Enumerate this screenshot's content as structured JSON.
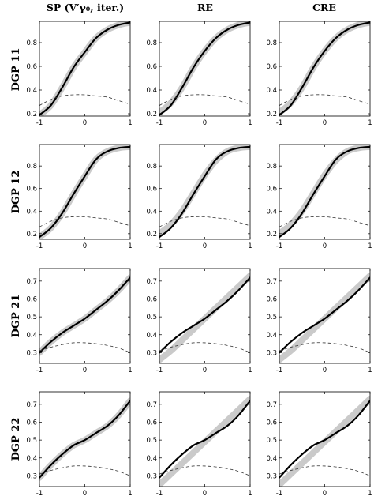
{
  "figure": {
    "column_titles": [
      "SP (V′γ₀, iter.)",
      "RE",
      "CRE"
    ],
    "row_titles": [
      "DGP 11",
      "DGP 12",
      "DGP 21",
      "DGP 22"
    ]
  },
  "chart_data": [
    {
      "type": "line",
      "column": "SP (V′γ₀, iter.)",
      "row": "DGP 11",
      "xlim": [
        -1,
        1
      ],
      "ylim": [
        0.18,
        0.98
      ],
      "xticks": [
        "-1",
        "0",
        "1"
      ],
      "yticks": [
        "0.2",
        "0.4",
        "0.6",
        "0.8"
      ],
      "x": [
        -1,
        -0.75,
        -0.5,
        -0.25,
        0,
        0.25,
        0.5,
        0.75,
        1
      ],
      "series": [
        {
          "style": "gray-band",
          "values": [
            0.19,
            0.27,
            0.42,
            0.59,
            0.72,
            0.84,
            0.91,
            0.95,
            0.97
          ]
        },
        {
          "style": "solid-black",
          "values": [
            0.19,
            0.27,
            0.42,
            0.59,
            0.72,
            0.84,
            0.91,
            0.95,
            0.97
          ]
        },
        {
          "style": "dashed",
          "values": [
            0.27,
            0.32,
            0.35,
            0.36,
            0.36,
            0.35,
            0.34,
            0.31,
            0.28
          ]
        }
      ]
    },
    {
      "type": "line",
      "column": "RE",
      "row": "DGP 11",
      "xlim": [
        -1,
        1
      ],
      "ylim": [
        0.18,
        0.98
      ],
      "xticks": [
        "-1",
        "0",
        "1"
      ],
      "yticks": [
        "0.2",
        "0.4",
        "0.6",
        "0.8"
      ],
      "x": [
        -1,
        -0.75,
        -0.5,
        -0.25,
        0,
        0.25,
        0.5,
        0.75,
        1
      ],
      "series": [
        {
          "style": "gray-band",
          "values": [
            0.21,
            0.29,
            0.42,
            0.59,
            0.73,
            0.84,
            0.91,
            0.95,
            0.97
          ]
        },
        {
          "style": "solid-black",
          "values": [
            0.19,
            0.27,
            0.42,
            0.59,
            0.73,
            0.84,
            0.91,
            0.95,
            0.97
          ]
        },
        {
          "style": "dashed",
          "values": [
            0.27,
            0.32,
            0.35,
            0.36,
            0.36,
            0.35,
            0.34,
            0.31,
            0.28
          ]
        }
      ]
    },
    {
      "type": "line",
      "column": "CRE",
      "row": "DGP 11",
      "xlim": [
        -1,
        1
      ],
      "ylim": [
        0.18,
        0.98
      ],
      "xticks": [
        "-1",
        "0",
        "1"
      ],
      "yticks": [
        "0.2",
        "0.4",
        "0.6",
        "0.8"
      ],
      "x": [
        -1,
        -0.75,
        -0.5,
        -0.25,
        0,
        0.25,
        0.5,
        0.75,
        1
      ],
      "series": [
        {
          "style": "gray-band",
          "values": [
            0.21,
            0.29,
            0.42,
            0.59,
            0.73,
            0.84,
            0.91,
            0.95,
            0.97
          ]
        },
        {
          "style": "solid-black",
          "values": [
            0.19,
            0.27,
            0.42,
            0.59,
            0.73,
            0.84,
            0.91,
            0.95,
            0.97
          ]
        },
        {
          "style": "dashed",
          "values": [
            0.27,
            0.32,
            0.35,
            0.36,
            0.36,
            0.35,
            0.34,
            0.31,
            0.28
          ]
        }
      ]
    },
    {
      "type": "line",
      "column": "SP (V′γ₀, iter.)",
      "row": "DGP 12",
      "xlim": [
        -1,
        1
      ],
      "ylim": [
        0.15,
        0.99
      ],
      "xticks": [
        "-1",
        "0",
        "1"
      ],
      "yticks": [
        "0.2",
        "0.4",
        "0.6",
        "0.8"
      ],
      "x": [
        -1,
        -0.75,
        -0.5,
        -0.25,
        0,
        0.25,
        0.5,
        0.75,
        1
      ],
      "series": [
        {
          "style": "gray-band",
          "values": [
            0.17,
            0.25,
            0.38,
            0.55,
            0.71,
            0.86,
            0.93,
            0.96,
            0.97
          ]
        },
        {
          "style": "solid-black",
          "values": [
            0.17,
            0.25,
            0.38,
            0.55,
            0.71,
            0.86,
            0.93,
            0.96,
            0.97
          ]
        },
        {
          "style": "dashed",
          "values": [
            0.26,
            0.31,
            0.34,
            0.35,
            0.35,
            0.34,
            0.33,
            0.3,
            0.27
          ]
        }
      ]
    },
    {
      "type": "line",
      "column": "RE",
      "row": "DGP 12",
      "xlim": [
        -1,
        1
      ],
      "ylim": [
        0.15,
        0.99
      ],
      "xticks": [
        "-1",
        "0",
        "1"
      ],
      "yticks": [
        "0.2",
        "0.4",
        "0.6",
        "0.8"
      ],
      "x": [
        -1,
        -0.75,
        -0.5,
        -0.25,
        0,
        0.25,
        0.5,
        0.75,
        1
      ],
      "series": [
        {
          "style": "gray-band",
          "values": [
            0.2,
            0.28,
            0.4,
            0.56,
            0.72,
            0.85,
            0.93,
            0.96,
            0.97
          ]
        },
        {
          "style": "solid-black",
          "values": [
            0.17,
            0.25,
            0.38,
            0.55,
            0.71,
            0.86,
            0.93,
            0.96,
            0.97
          ]
        },
        {
          "style": "dashed",
          "values": [
            0.26,
            0.31,
            0.34,
            0.35,
            0.35,
            0.34,
            0.33,
            0.3,
            0.27
          ]
        }
      ]
    },
    {
      "type": "line",
      "column": "CRE",
      "row": "DGP 12",
      "xlim": [
        -1,
        1
      ],
      "ylim": [
        0.15,
        0.99
      ],
      "xticks": [
        "-1",
        "0",
        "1"
      ],
      "yticks": [
        "0.2",
        "0.4",
        "0.6",
        "0.8"
      ],
      "x": [
        -1,
        -0.75,
        -0.5,
        -0.25,
        0,
        0.25,
        0.5,
        0.75,
        1
      ],
      "series": [
        {
          "style": "gray-band",
          "values": [
            0.2,
            0.28,
            0.4,
            0.56,
            0.72,
            0.85,
            0.93,
            0.96,
            0.97
          ]
        },
        {
          "style": "solid-black",
          "values": [
            0.17,
            0.25,
            0.38,
            0.55,
            0.71,
            0.86,
            0.93,
            0.96,
            0.97
          ]
        },
        {
          "style": "dashed",
          "values": [
            0.26,
            0.31,
            0.34,
            0.35,
            0.35,
            0.34,
            0.33,
            0.3,
            0.27
          ]
        }
      ]
    },
    {
      "type": "line",
      "column": "SP (V′γ₀, iter.)",
      "row": "DGP 21",
      "xlim": [
        -1,
        1
      ],
      "ylim": [
        0.24,
        0.77
      ],
      "xticks": [
        "-1",
        "0",
        "1"
      ],
      "yticks": [
        "0.3",
        "0.4",
        "0.5",
        "0.6",
        "0.7"
      ],
      "x": [
        -1,
        -0.75,
        -0.5,
        -0.25,
        0,
        0.25,
        0.5,
        0.75,
        1
      ],
      "series": [
        {
          "style": "gray-band",
          "values": [
            0.3,
            0.36,
            0.41,
            0.45,
            0.49,
            0.54,
            0.59,
            0.65,
            0.72
          ]
        },
        {
          "style": "solid-black",
          "values": [
            0.3,
            0.36,
            0.41,
            0.45,
            0.49,
            0.54,
            0.59,
            0.65,
            0.72
          ]
        },
        {
          "style": "dashed",
          "values": [
            0.31,
            0.33,
            0.345,
            0.355,
            0.355,
            0.35,
            0.34,
            0.325,
            0.3
          ]
        }
      ]
    },
    {
      "type": "line",
      "column": "RE",
      "row": "DGP 21",
      "xlim": [
        -1,
        1
      ],
      "ylim": [
        0.24,
        0.77
      ],
      "xticks": [
        "-1",
        "0",
        "1"
      ],
      "yticks": [
        "0.3",
        "0.4",
        "0.5",
        "0.6",
        "0.7"
      ],
      "x": [
        -1,
        -0.75,
        -0.5,
        -0.25,
        0,
        0.25,
        0.5,
        0.75,
        1
      ],
      "series": [
        {
          "style": "gray-band",
          "values": [
            0.26,
            0.31,
            0.37,
            0.43,
            0.49,
            0.55,
            0.61,
            0.67,
            0.73
          ]
        },
        {
          "style": "solid-black",
          "values": [
            0.3,
            0.36,
            0.41,
            0.45,
            0.49,
            0.54,
            0.59,
            0.65,
            0.72
          ]
        },
        {
          "style": "dashed",
          "values": [
            0.31,
            0.33,
            0.345,
            0.355,
            0.355,
            0.35,
            0.34,
            0.325,
            0.3
          ]
        }
      ]
    },
    {
      "type": "line",
      "column": "CRE",
      "row": "DGP 21",
      "xlim": [
        -1,
        1
      ],
      "ylim": [
        0.24,
        0.77
      ],
      "xticks": [
        "-1",
        "0",
        "1"
      ],
      "yticks": [
        "0.3",
        "0.4",
        "0.5",
        "0.6",
        "0.7"
      ],
      "x": [
        -1,
        -0.75,
        -0.5,
        -0.25,
        0,
        0.25,
        0.5,
        0.75,
        1
      ],
      "series": [
        {
          "style": "gray-band",
          "values": [
            0.26,
            0.31,
            0.37,
            0.43,
            0.49,
            0.55,
            0.61,
            0.67,
            0.73
          ]
        },
        {
          "style": "solid-black",
          "values": [
            0.3,
            0.36,
            0.41,
            0.45,
            0.49,
            0.54,
            0.59,
            0.65,
            0.72
          ]
        },
        {
          "style": "dashed",
          "values": [
            0.31,
            0.33,
            0.345,
            0.355,
            0.355,
            0.35,
            0.34,
            0.325,
            0.3
          ]
        }
      ]
    },
    {
      "type": "line",
      "column": "SP (V′γ₀, iter.)",
      "row": "DGP 22",
      "xlim": [
        -1,
        1
      ],
      "ylim": [
        0.24,
        0.77
      ],
      "xticks": [
        "-1",
        "0",
        "1"
      ],
      "yticks": [
        "0.3",
        "0.4",
        "0.5",
        "0.6",
        "0.7"
      ],
      "x": [
        -1,
        -0.75,
        -0.5,
        -0.25,
        0,
        0.25,
        0.5,
        0.75,
        1
      ],
      "series": [
        {
          "style": "gray-band",
          "values": [
            0.29,
            0.36,
            0.42,
            0.47,
            0.5,
            0.54,
            0.58,
            0.64,
            0.72
          ]
        },
        {
          "style": "solid-black",
          "values": [
            0.29,
            0.36,
            0.42,
            0.47,
            0.5,
            0.54,
            0.58,
            0.64,
            0.72
          ]
        },
        {
          "style": "dashed",
          "values": [
            0.31,
            0.33,
            0.345,
            0.355,
            0.355,
            0.35,
            0.34,
            0.325,
            0.3
          ]
        }
      ]
    },
    {
      "type": "line",
      "column": "RE",
      "row": "DGP 22",
      "xlim": [
        -1,
        1
      ],
      "ylim": [
        0.24,
        0.77
      ],
      "xticks": [
        "-1",
        "0",
        "1"
      ],
      "yticks": [
        "0.3",
        "0.4",
        "0.5",
        "0.6",
        "0.7"
      ],
      "x": [
        -1,
        -0.75,
        -0.5,
        -0.25,
        0,
        0.25,
        0.5,
        0.75,
        1
      ],
      "series": [
        {
          "style": "gray-band",
          "values": [
            0.25,
            0.31,
            0.37,
            0.43,
            0.49,
            0.55,
            0.61,
            0.67,
            0.73
          ]
        },
        {
          "style": "solid-black",
          "values": [
            0.29,
            0.36,
            0.42,
            0.47,
            0.5,
            0.54,
            0.58,
            0.64,
            0.72
          ]
        },
        {
          "style": "dashed",
          "values": [
            0.31,
            0.33,
            0.345,
            0.355,
            0.355,
            0.35,
            0.34,
            0.325,
            0.3
          ]
        }
      ]
    },
    {
      "type": "line",
      "column": "CRE",
      "row": "DGP 22",
      "xlim": [
        -1,
        1
      ],
      "ylim": [
        0.24,
        0.77
      ],
      "xticks": [
        "-1",
        "0",
        "1"
      ],
      "yticks": [
        "0.3",
        "0.4",
        "0.5",
        "0.6",
        "0.7"
      ],
      "x": [
        -1,
        -0.75,
        -0.5,
        -0.25,
        0,
        0.25,
        0.5,
        0.75,
        1
      ],
      "series": [
        {
          "style": "gray-band",
          "values": [
            0.25,
            0.31,
            0.37,
            0.43,
            0.49,
            0.55,
            0.61,
            0.67,
            0.73
          ]
        },
        {
          "style": "solid-black",
          "values": [
            0.29,
            0.36,
            0.42,
            0.47,
            0.5,
            0.54,
            0.58,
            0.64,
            0.72
          ]
        },
        {
          "style": "dashed",
          "values": [
            0.31,
            0.33,
            0.345,
            0.355,
            0.355,
            0.35,
            0.34,
            0.325,
            0.3
          ]
        }
      ]
    }
  ]
}
